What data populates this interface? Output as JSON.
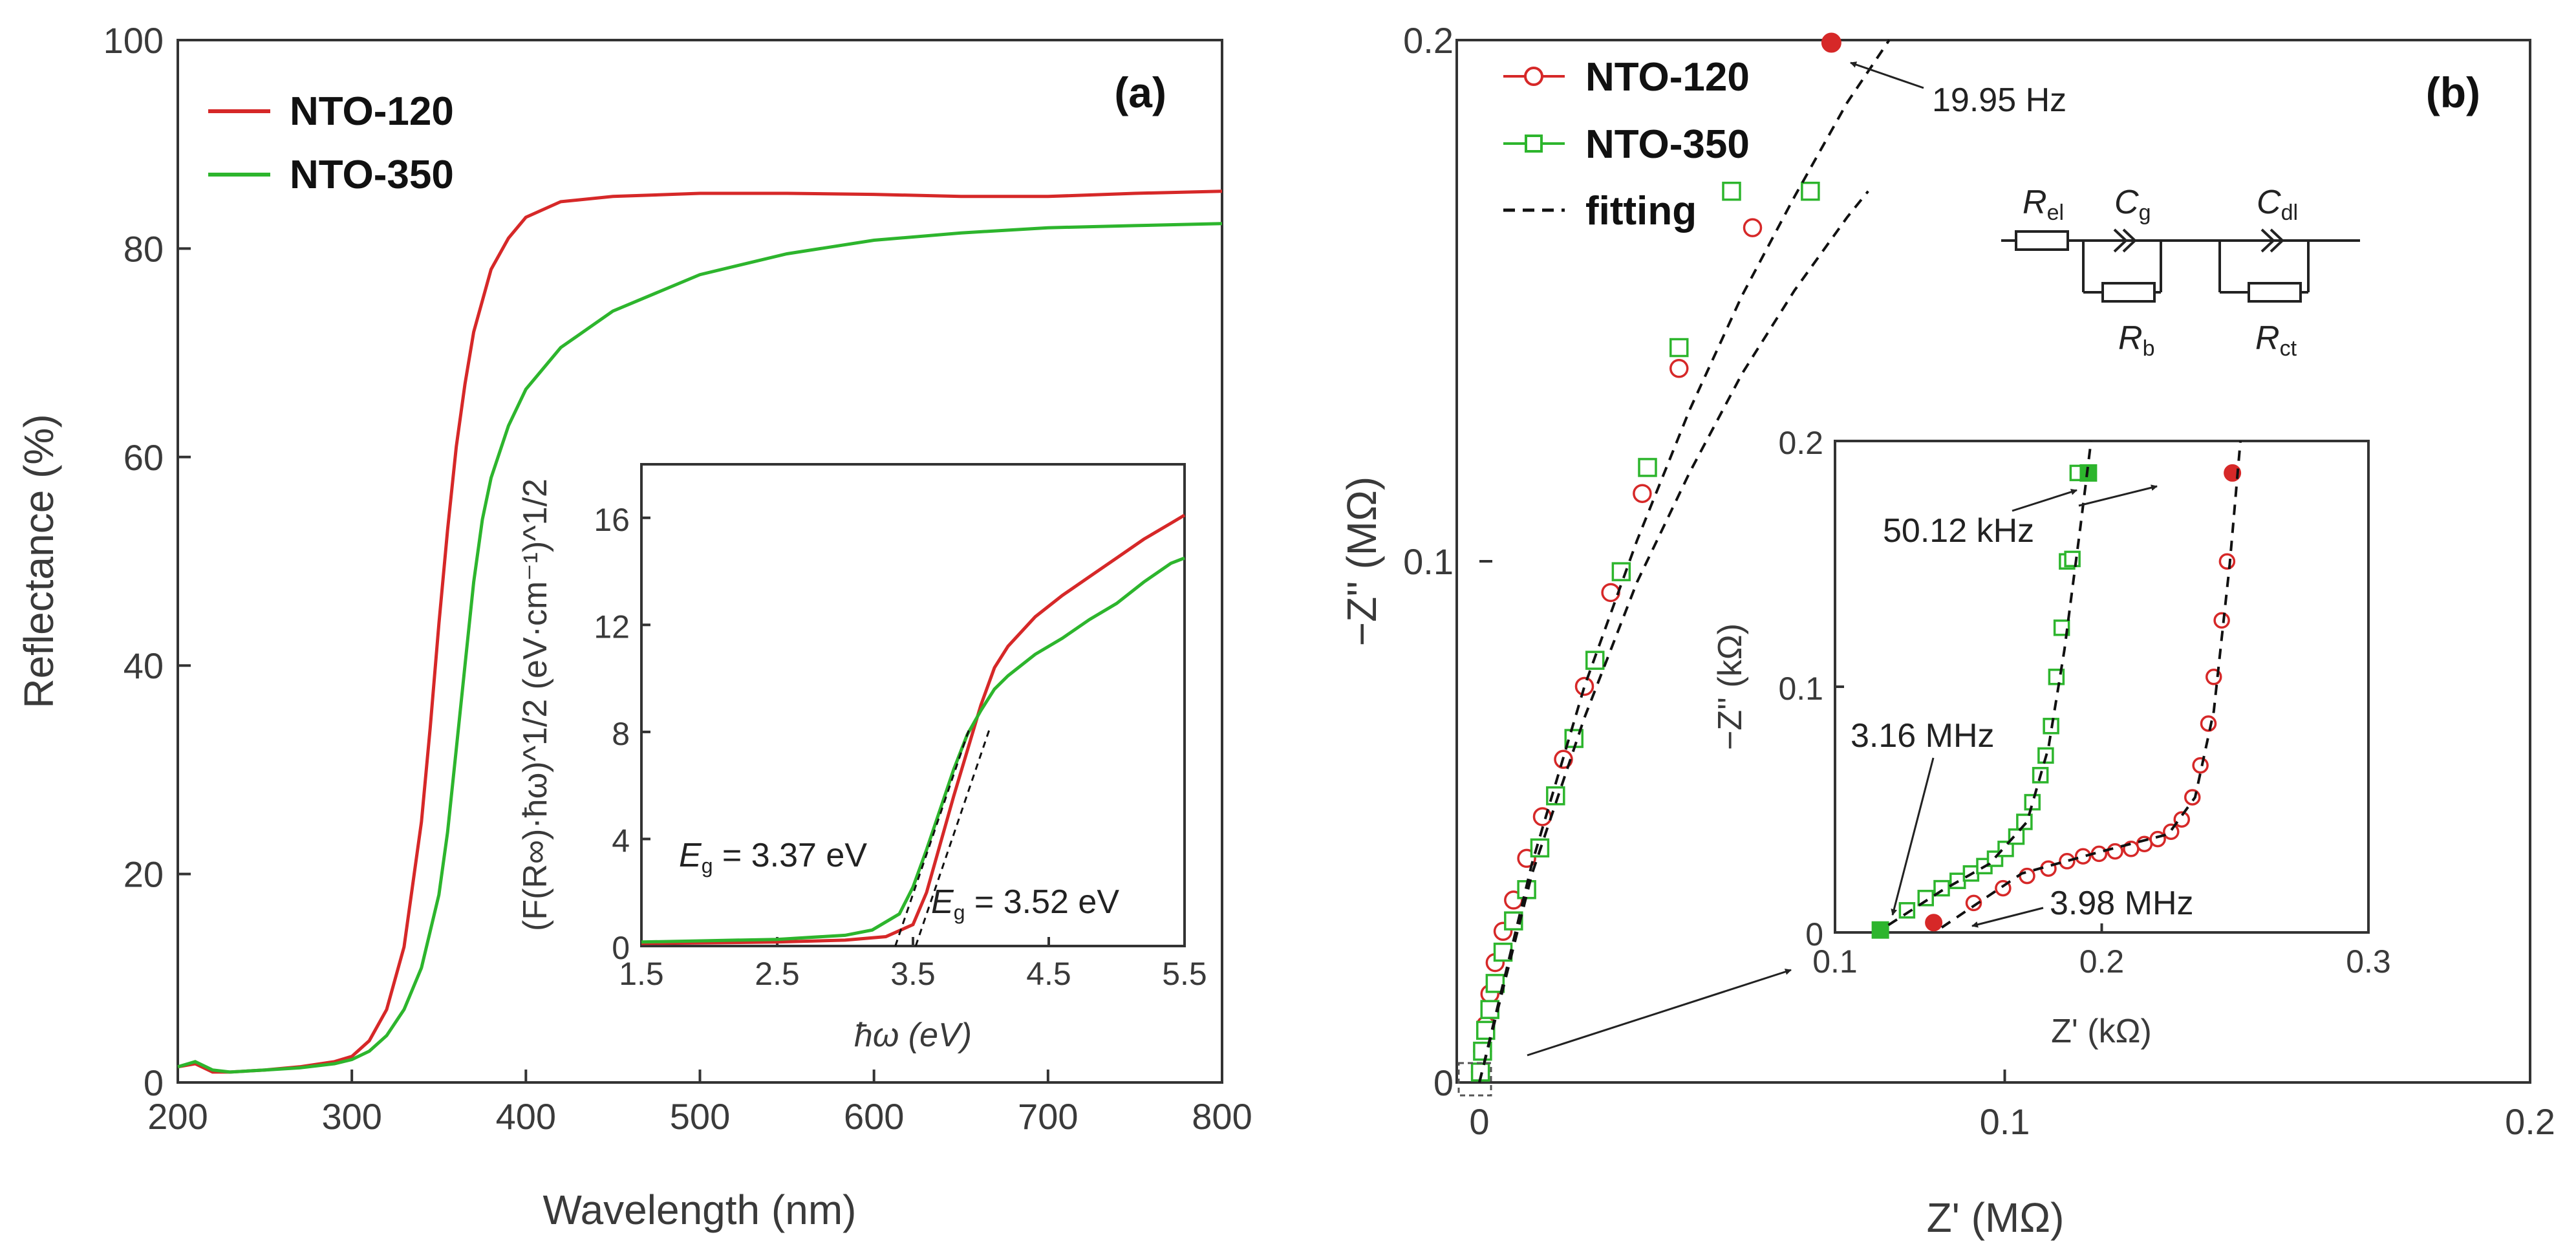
{
  "colors": {
    "nto120": "#d62828",
    "nto350": "#2db52d",
    "fit": "#111111",
    "axis": "#333333"
  },
  "panel_a": {
    "label": "(a)",
    "legend": [
      {
        "name": "NTO-120",
        "color": "#d62828"
      },
      {
        "name": "NTO-350",
        "color": "#2db52d"
      }
    ],
    "inset": {
      "eg_left": {
        "symbol": "E",
        "sub": "g",
        "text": " = 3.37 eV"
      },
      "eg_right": {
        "symbol": "E",
        "sub": "g",
        "text": " = 3.52 eV"
      }
    }
  },
  "panel_b": {
    "label": "(b)",
    "legend": [
      {
        "name": "NTO-120",
        "color": "#d62828",
        "marker": "circle"
      },
      {
        "name": "NTO-350",
        "color": "#2db52d",
        "marker": "square"
      },
      {
        "name": "fitting",
        "color": "#111111",
        "marker": "dash"
      }
    ],
    "annotations": {
      "main_freq": "19.95 Hz",
      "inset_low": "50.12 kHz",
      "inset_hi_350": "3.16 MHz",
      "inset_hi_120": "3.98 MHz"
    },
    "circuit": {
      "el": {
        "symbol": "R",
        "sub": "el"
      },
      "g": {
        "symbol": "C",
        "sub": "g"
      },
      "dl": {
        "symbol": "C",
        "sub": "dl"
      },
      "b": {
        "symbol": "R",
        "sub": "b"
      },
      "ct": {
        "symbol": "R",
        "sub": "ct"
      }
    }
  },
  "chart_data": [
    {
      "type": "line",
      "title": "(a)",
      "xlabel": "Wavelength (nm)",
      "ylabel": "Reflectance (%)",
      "xlim": [
        200,
        800
      ],
      "ylim": [
        0,
        100
      ],
      "xticks": [
        200,
        300,
        400,
        500,
        600,
        700,
        800
      ],
      "yticks": [
        0,
        20,
        40,
        60,
        80,
        100
      ],
      "series": [
        {
          "name": "NTO-120",
          "color": "#d62828",
          "x": [
            200,
            210,
            220,
            230,
            250,
            270,
            290,
            300,
            310,
            320,
            330,
            340,
            345,
            350,
            355,
            360,
            365,
            370,
            380,
            390,
            400,
            420,
            450,
            500,
            550,
            600,
            650,
            700,
            750,
            800
          ],
          "y": [
            1.5,
            1.8,
            1.0,
            1.0,
            1.2,
            1.5,
            2.0,
            2.5,
            4.0,
            7.0,
            13.0,
            25.0,
            34.0,
            44.0,
            53.0,
            61.0,
            67.0,
            72.0,
            78.0,
            81.0,
            83.0,
            84.5,
            85.0,
            85.3,
            85.3,
            85.2,
            85.0,
            85.0,
            85.3,
            85.5
          ]
        },
        {
          "name": "NTO-350",
          "color": "#2db52d",
          "x": [
            200,
            210,
            220,
            230,
            250,
            270,
            290,
            300,
            310,
            320,
            330,
            340,
            350,
            355,
            360,
            365,
            370,
            375,
            380,
            390,
            400,
            420,
            450,
            500,
            550,
            600,
            650,
            700,
            750,
            800
          ],
          "y": [
            1.5,
            2.0,
            1.2,
            1.0,
            1.2,
            1.4,
            1.8,
            2.2,
            3.0,
            4.5,
            7.0,
            11.0,
            18.0,
            24.0,
            32.0,
            40.0,
            48.0,
            54.0,
            58.0,
            63.0,
            66.5,
            70.5,
            74.0,
            77.5,
            79.5,
            80.8,
            81.5,
            82.0,
            82.2,
            82.4
          ]
        }
      ]
    },
    {
      "type": "line",
      "title": "(a) inset",
      "xlabel": "ħω (eV)",
      "ylabel": "(F(R∞)·ħω)^1/2 (eV·cm⁻¹)^1/2",
      "xlim": [
        1.5,
        5.5
      ],
      "ylim": [
        0,
        18
      ],
      "xticks": [
        1.5,
        2.5,
        3.5,
        4.5,
        5.5
      ],
      "yticks": [
        0,
        4,
        8,
        12,
        16
      ],
      "series": [
        {
          "name": "NTO-120",
          "color": "#d62828",
          "x": [
            1.5,
            2.0,
            2.5,
            3.0,
            3.3,
            3.5,
            3.6,
            3.7,
            3.8,
            3.9,
            4.0,
            4.1,
            4.2,
            4.4,
            4.6,
            4.8,
            5.0,
            5.2,
            5.4,
            5.5
          ],
          "y": [
            0.1,
            0.12,
            0.15,
            0.22,
            0.35,
            0.8,
            2.0,
            3.8,
            5.6,
            7.3,
            9.0,
            10.4,
            11.2,
            12.3,
            13.1,
            13.8,
            14.5,
            15.2,
            15.8,
            16.1
          ]
        },
        {
          "name": "NTO-350",
          "color": "#2db52d",
          "x": [
            1.5,
            2.0,
            2.5,
            3.0,
            3.2,
            3.4,
            3.5,
            3.6,
            3.7,
            3.8,
            3.9,
            4.0,
            4.1,
            4.2,
            4.4,
            4.6,
            4.8,
            5.0,
            5.2,
            5.4,
            5.5
          ],
          "y": [
            0.15,
            0.2,
            0.25,
            0.4,
            0.6,
            1.2,
            2.2,
            3.6,
            5.1,
            6.6,
            7.9,
            8.8,
            9.6,
            10.1,
            10.9,
            11.5,
            12.2,
            12.8,
            13.6,
            14.3,
            14.5
          ]
        },
        {
          "name": "tangent NTO-350",
          "color": "#111111",
          "x": [
            3.37,
            3.92
          ],
          "y": [
            0,
            8.2
          ]
        },
        {
          "name": "tangent NTO-120",
          "color": "#111111",
          "x": [
            3.52,
            4.07
          ],
          "y": [
            0,
            8.2
          ]
        }
      ]
    },
    {
      "type": "scatter",
      "title": "(b)",
      "xlabel": "Z' (MΩ)",
      "ylabel": "−Z'' (MΩ)",
      "xlim": [
        0,
        0.2
      ],
      "ylim": [
        0,
        0.2
      ],
      "xticks": [
        0,
        0.1,
        0.2
      ],
      "yticks": [
        0,
        0.1,
        0.2
      ],
      "series": [
        {
          "name": "NTO-120",
          "color": "#d62828",
          "marker": "open-circle",
          "x": [
            0.0002,
            0.0006,
            0.0012,
            0.002,
            0.003,
            0.0045,
            0.0065,
            0.009,
            0.012,
            0.016,
            0.02,
            0.025,
            0.031,
            0.038,
            0.052,
            0.067
          ],
          "y": [
            0.002,
            0.006,
            0.011,
            0.017,
            0.023,
            0.029,
            0.035,
            0.043,
            0.051,
            0.062,
            0.076,
            0.094,
            0.113,
            0.137,
            0.164,
            0.1995
          ],
          "highlighted": [
            {
              "x": 0.067,
              "y": 0.1995,
              "label": "19.95 Hz"
            }
          ]
        },
        {
          "name": "NTO-350",
          "color": "#2db52d",
          "marker": "open-square",
          "x": [
            0.0002,
            0.0006,
            0.0012,
            0.002,
            0.003,
            0.0045,
            0.0065,
            0.009,
            0.0115,
            0.0145,
            0.018,
            0.022,
            0.027,
            0.032,
            0.038,
            0.048,
            0.063
          ],
          "y": [
            0.002,
            0.006,
            0.01,
            0.014,
            0.019,
            0.025,
            0.031,
            0.037,
            0.045,
            0.055,
            0.066,
            0.081,
            0.098,
            0.118,
            0.141,
            0.171,
            0.171
          ],
          "highlighted": []
        },
        {
          "name": "fitting NTO-120",
          "color": "#111111",
          "x": [
            0,
            0.01,
            0.02,
            0.03,
            0.04,
            0.05,
            0.06,
            0.07,
            0.078
          ],
          "y": [
            0,
            0.042,
            0.076,
            0.104,
            0.129,
            0.151,
            0.17,
            0.188,
            0.2
          ]
        },
        {
          "name": "fitting NTO-350",
          "color": "#111111",
          "x": [
            0,
            0.01,
            0.02,
            0.03,
            0.04,
            0.05,
            0.06,
            0.07,
            0.074
          ],
          "y": [
            0,
            0.04,
            0.07,
            0.096,
            0.117,
            0.136,
            0.152,
            0.166,
            0.171
          ]
        }
      ]
    },
    {
      "type": "scatter",
      "title": "(b) inset",
      "xlabel": "Z' (kΩ)",
      "ylabel": "−Z'' (kΩ)",
      "xlim": [
        0.1,
        0.3
      ],
      "ylim": [
        0,
        0.2
      ],
      "xticks": [
        0.1,
        0.2,
        0.3
      ],
      "xtick_labels": [
        "0.1",
        "0.2",
        "0.3"
      ],
      "yticks": [
        0,
        0.1,
        0.2
      ],
      "series": [
        {
          "name": "NTO-120",
          "color": "#d62828",
          "marker": "open-circle",
          "x": [
            0.137,
            0.152,
            0.163,
            0.172,
            0.18,
            0.187,
            0.193,
            0.199,
            0.205,
            0.211,
            0.216,
            0.221,
            0.226,
            0.23,
            0.234,
            0.237,
            0.24,
            0.242,
            0.245,
            0.247,
            0.249
          ],
          "y": [
            0.004,
            0.012,
            0.018,
            0.023,
            0.026,
            0.029,
            0.031,
            0.032,
            0.033,
            0.034,
            0.036,
            0.038,
            0.041,
            0.046,
            0.055,
            0.068,
            0.085,
            0.104,
            0.127,
            0.151,
            0.187
          ],
          "highlighted": [
            {
              "x": 0.137,
              "y": 0.004,
              "label": "3.98 MHz"
            },
            {
              "x": 0.249,
              "y": 0.187,
              "label": "50.12 kHz"
            }
          ]
        },
        {
          "name": "NTO-350",
          "color": "#2db52d",
          "marker": "open-square",
          "x": [
            0.117,
            0.127,
            0.134,
            0.14,
            0.146,
            0.151,
            0.156,
            0.16,
            0.164,
            0.168,
            0.171,
            0.174,
            0.177,
            0.179,
            0.181,
            0.183,
            0.185,
            0.187,
            0.189,
            0.191,
            0.195
          ],
          "y": [
            0.001,
            0.009,
            0.014,
            0.018,
            0.021,
            0.024,
            0.027,
            0.03,
            0.034,
            0.039,
            0.045,
            0.053,
            0.064,
            0.072,
            0.084,
            0.104,
            0.124,
            0.151,
            0.152,
            0.187,
            0.187
          ],
          "highlighted": [
            {
              "x": 0.117,
              "y": 0.001,
              "label": "3.16 MHz"
            },
            {
              "x": 0.195,
              "y": 0.187,
              "label": "50.12 kHz"
            }
          ]
        },
        {
          "name": "fitting NTO-120",
          "color": "#111111",
          "x": [
            0.14,
            0.17,
            0.2,
            0.225,
            0.235,
            0.242,
            0.248,
            0.252
          ],
          "y": [
            0.002,
            0.024,
            0.033,
            0.04,
            0.055,
            0.09,
            0.15,
            0.2
          ]
        },
        {
          "name": "fitting NTO-350",
          "color": "#111111",
          "x": [
            0.12,
            0.14,
            0.158,
            0.172,
            0.18,
            0.186,
            0.192,
            0.196
          ],
          "y": [
            0.003,
            0.017,
            0.028,
            0.045,
            0.075,
            0.115,
            0.165,
            0.2
          ]
        }
      ]
    }
  ]
}
